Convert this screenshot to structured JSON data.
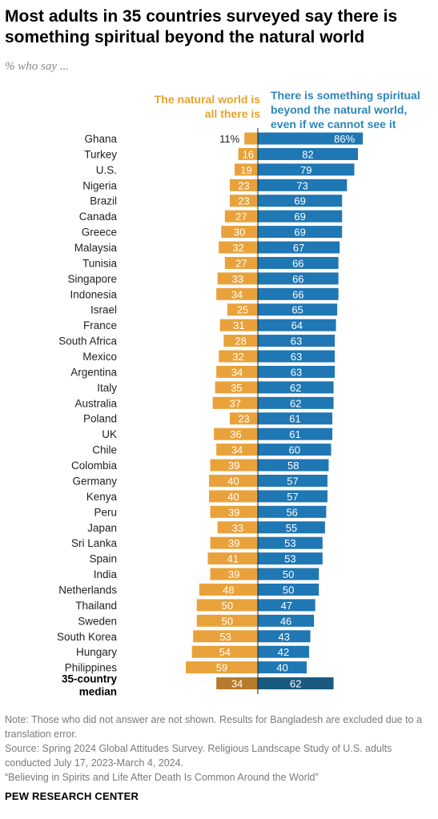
{
  "title": "Most adults in 35 countries surveyed say there is something spiritual beyond the natural world",
  "subtitle": "% who say ...",
  "legend": {
    "natural": "The natural world is all there is",
    "spiritual": "There is something spiritual beyond the natural world, even if we cannot see it"
  },
  "colors": {
    "natural": "#E9A23B",
    "spiritual": "#1F77B4",
    "natural_median": "#B57A2A",
    "spiritual_median": "#195A7E",
    "natural_legend": "#E4A331",
    "spiritual_legend": "#2E86B9"
  },
  "chart_data": {
    "type": "bar",
    "orientation": "horizontal-diverging",
    "categories": [
      "Ghana",
      "Turkey",
      "U.S.",
      "Nigeria",
      "Brazil",
      "Canada",
      "Greece",
      "Malaysia",
      "Tunisia",
      "Singapore",
      "Indonesia",
      "Israel",
      "France",
      "South Africa",
      "Mexico",
      "Argentina",
      "Italy",
      "Australia",
      "Poland",
      "UK",
      "Chile",
      "Colombia",
      "Germany",
      "Kenya",
      "Peru",
      "Japan",
      "Sri Lanka",
      "Spain",
      "India",
      "Netherlands",
      "Thailand",
      "Sweden",
      "South Korea",
      "Hungary",
      "Philippines"
    ],
    "series": [
      {
        "name": "The natural world is all there is",
        "values": [
          11,
          16,
          19,
          23,
          23,
          27,
          30,
          32,
          27,
          33,
          34,
          25,
          31,
          28,
          32,
          34,
          35,
          37,
          23,
          36,
          34,
          39,
          40,
          40,
          39,
          33,
          39,
          41,
          39,
          48,
          50,
          50,
          53,
          54,
          59
        ]
      },
      {
        "name": "There is something spiritual beyond the natural world, even if we cannot see it",
        "values": [
          86,
          82,
          79,
          73,
          69,
          69,
          69,
          67,
          66,
          66,
          66,
          65,
          64,
          63,
          63,
          63,
          62,
          62,
          61,
          61,
          60,
          58,
          57,
          57,
          56,
          55,
          53,
          53,
          50,
          50,
          47,
          46,
          43,
          42,
          40
        ]
      }
    ],
    "first_labels": {
      "natural": "11%",
      "spiritual": "86%"
    },
    "median": {
      "label_line1": "35-country",
      "label_line2": "median",
      "natural": 34,
      "spiritual": 62
    }
  },
  "notes": {
    "note": "Note: Those who did not answer are not shown. Results for Bangladesh are excluded due to a translation error.",
    "source": "Source: Spring 2024 Global Attitudes Survey. Religious Landscape Study of U.S. adults conducted July 17, 2023-March 4, 2024.",
    "report": "“Believing in Spirits and Life After Death Is Common Around the World”"
  },
  "footer": "PEW RESEARCH CENTER"
}
